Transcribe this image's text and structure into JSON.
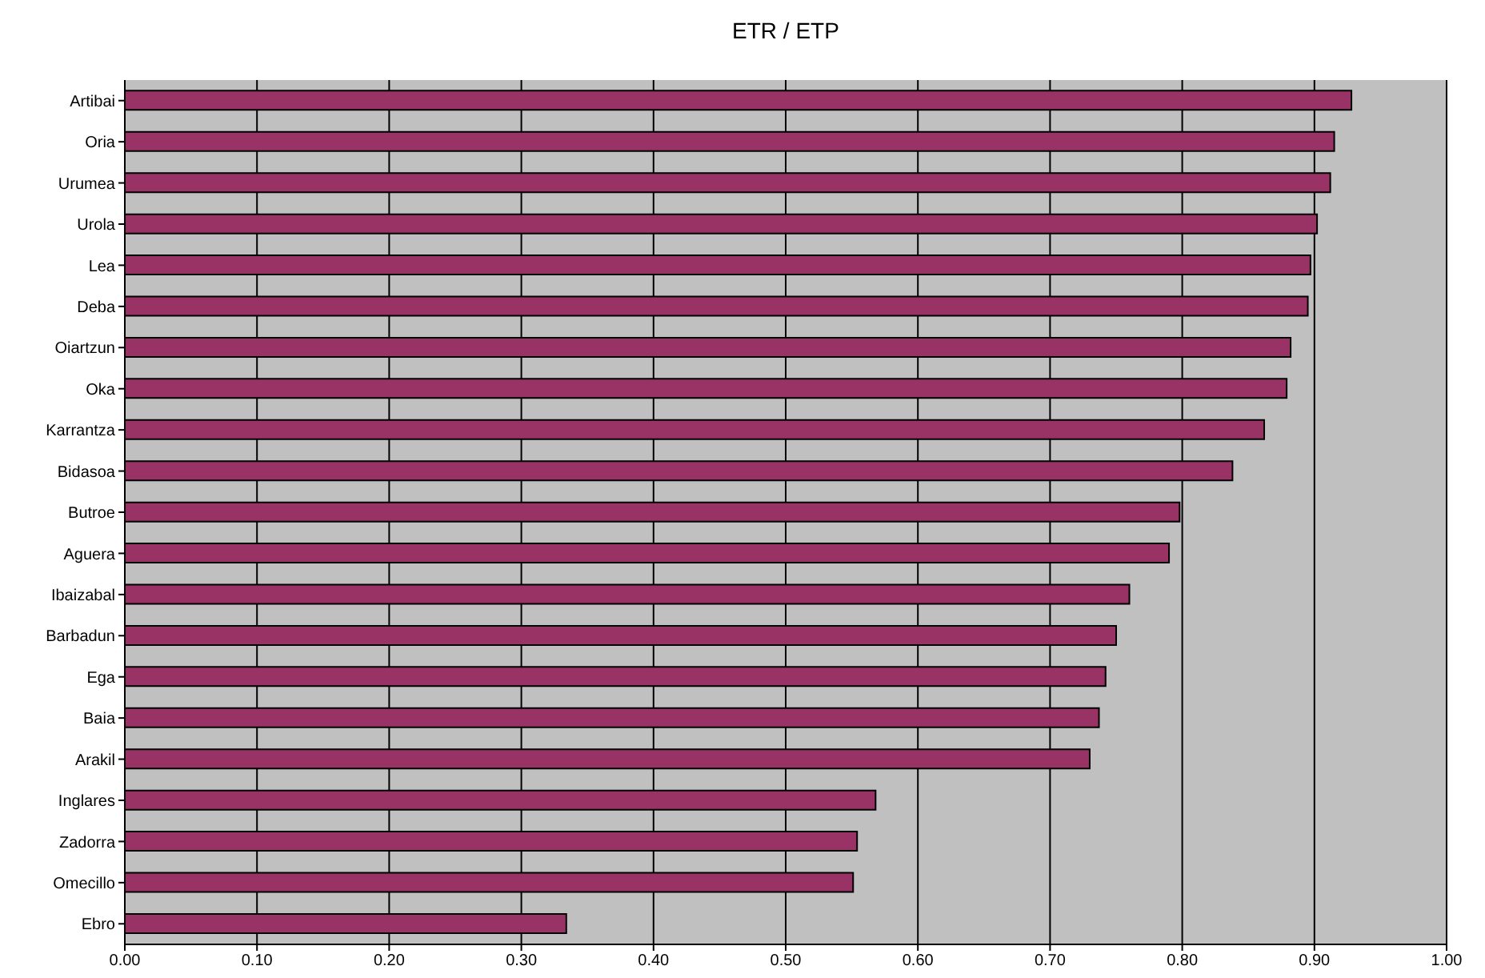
{
  "chart_data": {
    "type": "bar",
    "orientation": "horizontal",
    "title": "ETR / ETP",
    "categories": [
      "Artibai",
      "Oria",
      "Urumea",
      "Urola",
      "Lea",
      "Deba",
      "Oiartzun",
      "Oka",
      "Karrantza",
      "Bidasoa",
      "Butroe",
      "Aguera",
      "Ibaizabal",
      "Barbadun",
      "Ega",
      "Baia",
      "Arakil",
      "Inglares",
      "Zadorra",
      "Omecillo",
      "Ebro"
    ],
    "values": [
      0.928,
      0.915,
      0.912,
      0.902,
      0.897,
      0.895,
      0.882,
      0.879,
      0.862,
      0.838,
      0.798,
      0.79,
      0.76,
      0.75,
      0.742,
      0.737,
      0.73,
      0.568,
      0.554,
      0.551,
      0.334
    ],
    "color": "#993366",
    "xlim": [
      0,
      1
    ],
    "xticks": [
      {
        "value": 0,
        "label": "0.00"
      },
      {
        "value": 0.1,
        "label": "0.10"
      },
      {
        "value": 0.2,
        "label": "0.20"
      },
      {
        "value": 0.3,
        "label": "0.30"
      },
      {
        "value": 0.4,
        "label": "0.40"
      },
      {
        "value": 0.5,
        "label": "0.50"
      },
      {
        "value": 0.6,
        "label": "0.60"
      },
      {
        "value": 0.7,
        "label": "0.70"
      },
      {
        "value": 0.8,
        "label": "0.80"
      },
      {
        "value": 0.9,
        "label": "0.90"
      },
      {
        "value": 1,
        "label": "1.00"
      }
    ],
    "grid": "x",
    "legend": false
  }
}
